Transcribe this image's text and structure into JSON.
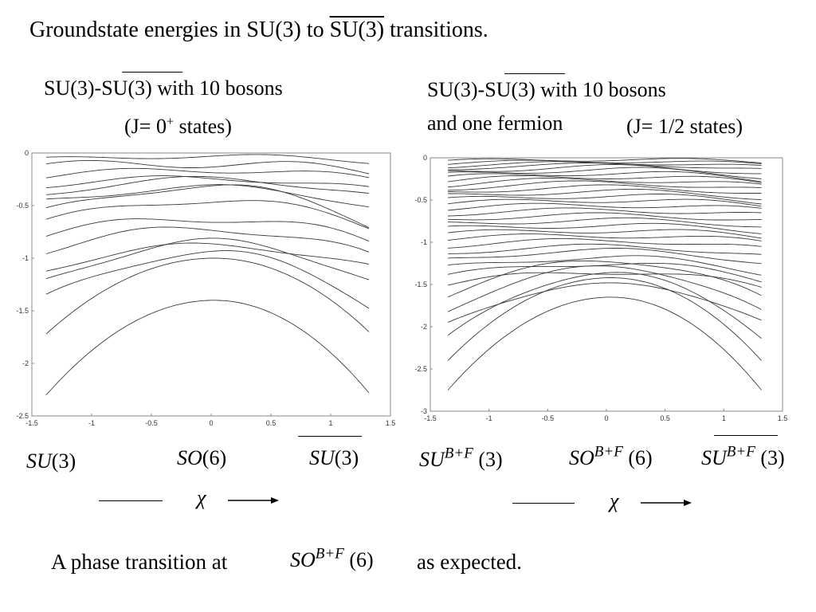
{
  "title": {
    "prefix": "Groundstate energies in SU(3) to ",
    "bar_group": "SU(3)",
    "suffix": " transitions."
  },
  "left_panel": {
    "heading_prefix": "SU(3)-",
    "heading_bar": "SU(3)",
    "heading_suffix": " with 10 bosons",
    "subheading": "(J= 0",
    "subheading_sup": "+",
    "subheading_end": " states)"
  },
  "right_panel": {
    "heading_prefix": "SU(3)-",
    "heading_bar": "SU(3)",
    "heading_suffix": " with 10 bosons",
    "subheading_line": "and one fermion",
    "subheading_states": "(J= 1/2 states)"
  },
  "left_axis_labels": {
    "label1_name": "SU",
    "label1_arg": "(3)",
    "label2_name": "SO",
    "label2_arg": "(6)",
    "label3_name": "SU",
    "label3_arg": "(3)"
  },
  "right_axis_labels": {
    "label1_name": "SU",
    "label1_sup": "B+F",
    "label1_arg": "(3)",
    "label2_name": "SO",
    "label2_sup": "B+F",
    "label2_arg": "(6)",
    "label3_name": "SU",
    "label3_sup": "B+F",
    "label3_arg": "(3)"
  },
  "chi_symbol": "χ",
  "footer": {
    "prefix": "A phase transition at",
    "name": "SO",
    "sup": "B+F",
    "arg": "(6)",
    "suffix": "as expected."
  },
  "chart_data": [
    {
      "type": "line",
      "title": "SU(3)-SU(3) with 10 bosons (J= 0+ states)",
      "xlim": [
        -1.5,
        1.5
      ],
      "ylim": [
        -2.5,
        0
      ],
      "x_domain": [
        -1.38,
        1.32
      ],
      "xticks": [
        -1.5,
        -1,
        -0.5,
        0,
        0.5,
        1,
        1.5
      ],
      "yticks": [
        0,
        -0.5,
        -1,
        -1.5,
        -2,
        -2.5
      ],
      "grid": false,
      "series": [
        {
          "left": -2.3,
          "mid": -1.4,
          "right": -2.28,
          "wiggle": 0.0
        },
        {
          "left": -1.72,
          "mid": -1.0,
          "right": -1.7,
          "wiggle": 0.0
        },
        {
          "left": -1.37,
          "mid": -0.95,
          "right": -1.45,
          "wiggle": 0.03
        },
        {
          "left": -1.2,
          "mid": -0.85,
          "right": -1.2,
          "wiggle": 0.04
        },
        {
          "left": -1.1,
          "mid": -0.88,
          "right": -1.08,
          "wiggle": 0.03
        },
        {
          "left": -0.92,
          "mid": -0.72,
          "right": -0.98,
          "wiggle": 0.04
        },
        {
          "left": -0.78,
          "mid": -0.62,
          "right": -0.85,
          "wiggle": 0.04
        },
        {
          "left": -0.65,
          "mid": -0.45,
          "right": -0.7,
          "wiggle": 0.03
        },
        {
          "left": -0.55,
          "mid": -0.32,
          "right": -0.68,
          "wiggle": 0.03
        },
        {
          "left": -0.45,
          "mid": -0.33,
          "right": -0.5,
          "wiggle": 0.03
        },
        {
          "left": -0.38,
          "mid": -0.25,
          "right": -0.4,
          "wiggle": 0.03
        },
        {
          "left": -0.3,
          "mid": -0.24,
          "right": -0.35,
          "wiggle": 0.03
        },
        {
          "left": -0.22,
          "mid": -0.16,
          "right": -0.25,
          "wiggle": 0.03
        },
        {
          "left": -0.12,
          "mid": -0.1,
          "right": -0.18,
          "wiggle": 0.04
        },
        {
          "left": -0.06,
          "mid": -0.03,
          "right": -0.08,
          "wiggle": 0.02
        }
      ]
    },
    {
      "type": "line",
      "title": "SU(3)-SU(3) with 10 bosons and one fermion (J= 1/2 states)",
      "xlim": [
        -1.5,
        1.5
      ],
      "ylim": [
        -3,
        0
      ],
      "x_domain": [
        -1.35,
        1.32
      ],
      "xticks": [
        -1.5,
        -1,
        -0.5,
        0,
        0.5,
        1,
        1.5
      ],
      "yticks": [
        0,
        -0.5,
        -1,
        -1.5,
        -2,
        -2.5,
        -3
      ],
      "grid": false,
      "series": [
        {
          "left": -2.75,
          "mid": -1.65,
          "right": -2.75,
          "wiggle": 0.0
        },
        {
          "left": -2.4,
          "mid": -1.42,
          "right": -2.4,
          "wiggle": 0.0
        },
        {
          "left": -2.12,
          "mid": -1.37,
          "right": -2.12,
          "wiggle": 0.02
        },
        {
          "left": -1.95,
          "mid": -1.5,
          "right": -1.92,
          "wiggle": 0.02
        },
        {
          "left": -1.8,
          "mid": -1.3,
          "right": -1.82,
          "wiggle": 0.03
        },
        {
          "left": -1.62,
          "mid": -1.22,
          "right": -1.66,
          "wiggle": 0.03
        },
        {
          "left": -1.5,
          "mid": -1.35,
          "right": -1.54,
          "wiggle": 0.03
        },
        {
          "left": -1.4,
          "mid": -1.25,
          "right": -1.45,
          "wiggle": 0.03
        },
        {
          "left": -1.3,
          "mid": -1.18,
          "right": -1.36,
          "wiggle": 0.03
        },
        {
          "left": -1.2,
          "mid": -1.1,
          "right": -1.24,
          "wiggle": 0.03
        },
        {
          "left": -1.12,
          "mid": -1.05,
          "right": -1.16,
          "wiggle": 0.03
        },
        {
          "left": -1.04,
          "mid": -0.98,
          "right": -1.08,
          "wiggle": 0.03
        },
        {
          "left": -0.96,
          "mid": -0.92,
          "right": -1.0,
          "wiggle": 0.03
        },
        {
          "left": -0.9,
          "mid": -0.86,
          "right": -0.94,
          "wiggle": 0.03
        },
        {
          "left": -0.84,
          "mid": -0.8,
          "right": -0.87,
          "wiggle": 0.03
        },
        {
          "left": -0.78,
          "mid": -0.74,
          "right": -0.8,
          "wiggle": 0.03
        },
        {
          "left": -0.72,
          "mid": -0.68,
          "right": -0.74,
          "wiggle": 0.03
        },
        {
          "left": -0.66,
          "mid": -0.62,
          "right": -0.68,
          "wiggle": 0.03
        },
        {
          "left": -0.6,
          "mid": -0.56,
          "right": -0.62,
          "wiggle": 0.03
        },
        {
          "left": -0.55,
          "mid": -0.5,
          "right": -0.57,
          "wiggle": 0.03
        },
        {
          "left": -0.5,
          "mid": -0.45,
          "right": -0.52,
          "wiggle": 0.03
        },
        {
          "left": -0.45,
          "mid": -0.4,
          "right": -0.47,
          "wiggle": 0.03
        },
        {
          "left": -0.4,
          "mid": -0.35,
          "right": -0.42,
          "wiggle": 0.03
        },
        {
          "left": -0.36,
          "mid": -0.3,
          "right": -0.38,
          "wiggle": 0.03
        },
        {
          "left": -0.32,
          "mid": -0.26,
          "right": -0.34,
          "wiggle": 0.03
        },
        {
          "left": -0.28,
          "mid": -0.22,
          "right": -0.3,
          "wiggle": 0.03
        },
        {
          "left": -0.24,
          "mid": -0.18,
          "right": -0.26,
          "wiggle": 0.03
        },
        {
          "left": -0.2,
          "mid": -0.14,
          "right": -0.22,
          "wiggle": 0.03
        },
        {
          "left": -0.16,
          "mid": -0.11,
          "right": -0.18,
          "wiggle": 0.03
        },
        {
          "left": -0.13,
          "mid": -0.08,
          "right": -0.14,
          "wiggle": 0.02
        },
        {
          "left": -0.1,
          "mid": -0.06,
          "right": -0.11,
          "wiggle": 0.02
        },
        {
          "left": -0.07,
          "mid": -0.04,
          "right": -0.08,
          "wiggle": 0.02
        },
        {
          "left": -0.04,
          "mid": -0.02,
          "right": -0.05,
          "wiggle": 0.02
        }
      ]
    }
  ]
}
